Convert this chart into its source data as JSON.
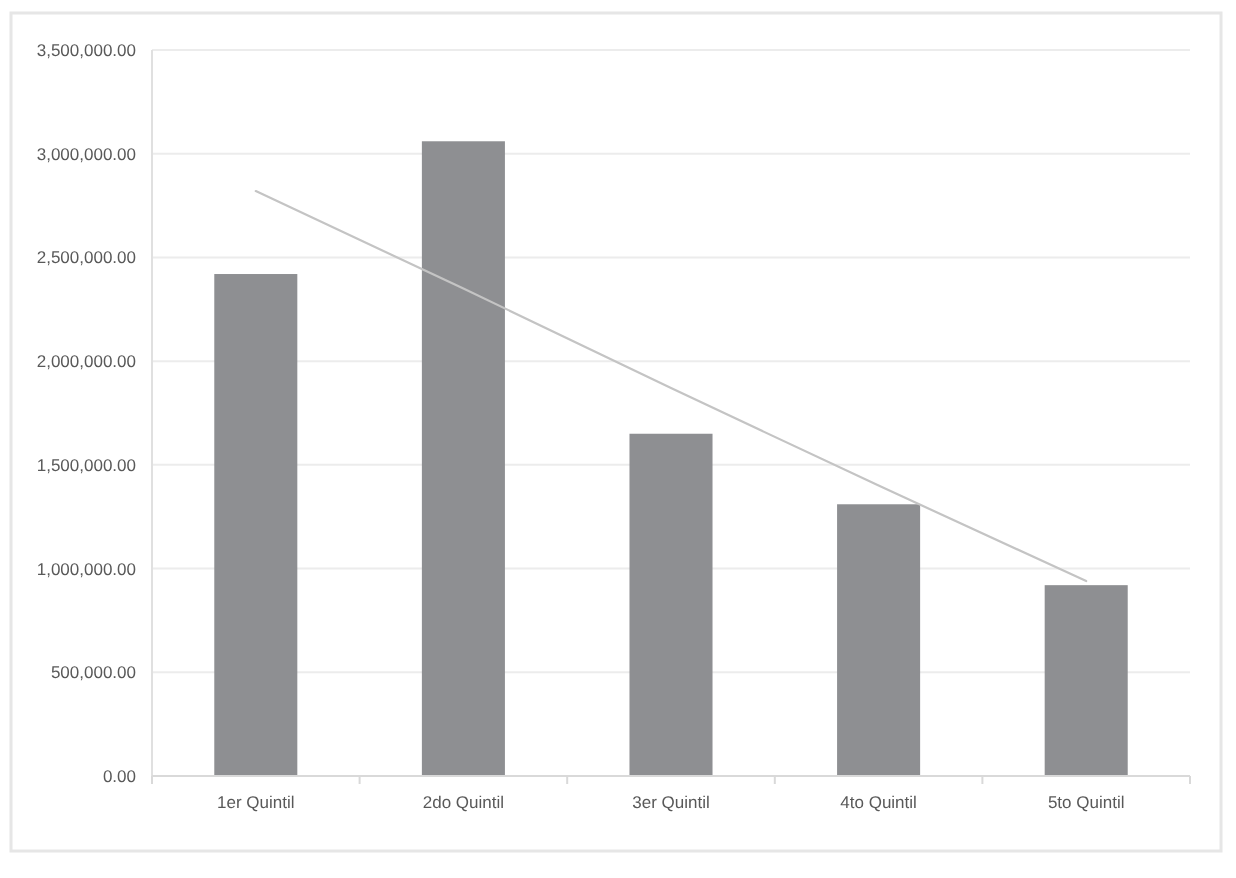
{
  "chart_data": {
    "type": "bar",
    "categories": [
      "1er Quintil",
      "2do Quintil",
      "3er Quintil",
      "4to Quintil",
      "5to Quintil"
    ],
    "series": [
      {
        "color": "#8e8f92",
        "values": [
          2420000,
          3060000,
          1650000,
          1310000,
          920000
        ]
      },
      {
        "type": "line",
        "color": "#c4c4c4",
        "values": [
          2820000,
          2350000,
          1870000,
          1400000,
          940000
        ]
      }
    ],
    "ylim": [
      0,
      3500000
    ],
    "yticks": [
      {
        "value": 0,
        "label": "0.00"
      },
      {
        "value": 500000,
        "label": "500,000.00"
      },
      {
        "value": 1000000,
        "label": "1,000,000.00"
      },
      {
        "value": 1500000,
        "label": "1,500,000.00"
      },
      {
        "value": 2000000,
        "label": "2,000,000.00"
      },
      {
        "value": 2500000,
        "label": "2,500,000.00"
      },
      {
        "value": 3000000,
        "label": "3,000,000.00"
      },
      {
        "value": 3500000,
        "label": "3,500,000.00"
      }
    ],
    "grid": "y"
  }
}
